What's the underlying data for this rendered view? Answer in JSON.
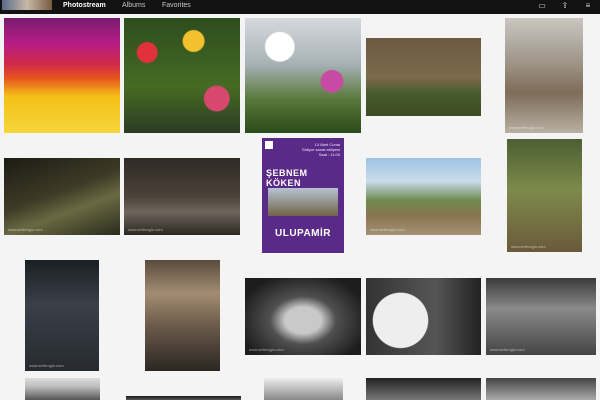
{
  "nav": {
    "tabs": [
      {
        "label": "Photostream",
        "active": true
      },
      {
        "label": "Albums",
        "active": false
      },
      {
        "label": "Favorites",
        "active": false
      }
    ],
    "icons": [
      "slideshow-icon",
      "share-icon",
      "menu-icon"
    ]
  },
  "watermark": "www.seferoglu.com",
  "poster": {
    "name": "ŞEBNEM KÖKEN",
    "date_line1": "13 Mart Cuma",
    "date_line2": "Gidiyor sanat atölyesi",
    "date_line3": "Saat : 11:00",
    "banner": "ULUPAMİR"
  }
}
